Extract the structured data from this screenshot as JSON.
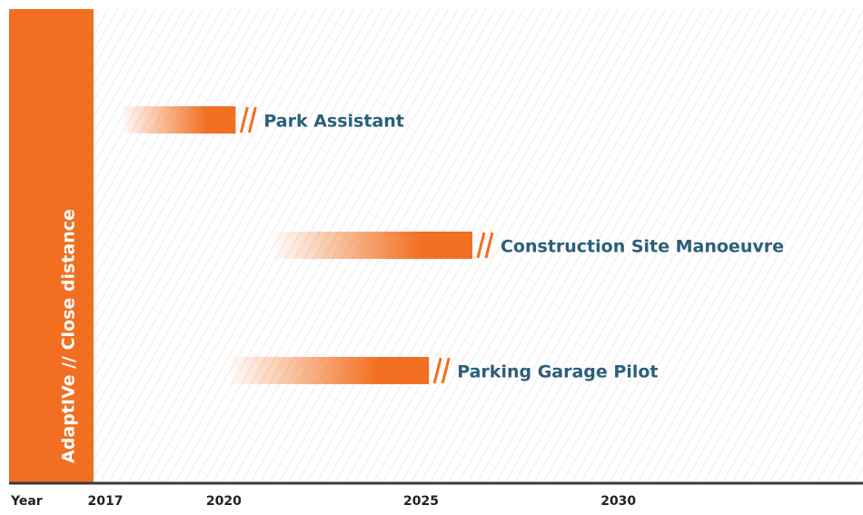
{
  "chart_data": {
    "type": "timeline",
    "side_label": "AdaptIVe // Close distance",
    "x_label": "Year",
    "xlim": [
      2016.7,
      2036.2
    ],
    "xticks": [
      2017,
      2020,
      2025,
      2030
    ],
    "color": "#f26f21",
    "label_color": "#2b5f7a",
    "tasks": [
      {
        "name": "Park Assistant",
        "start": 2017.4,
        "end": 2020.3
      },
      {
        "name": "Construction Site Manoeuvre",
        "start": 2021.2,
        "end": 2026.3
      },
      {
        "name": "Parking Garage Pilot",
        "start": 2020.1,
        "end": 2025.2
      }
    ]
  }
}
